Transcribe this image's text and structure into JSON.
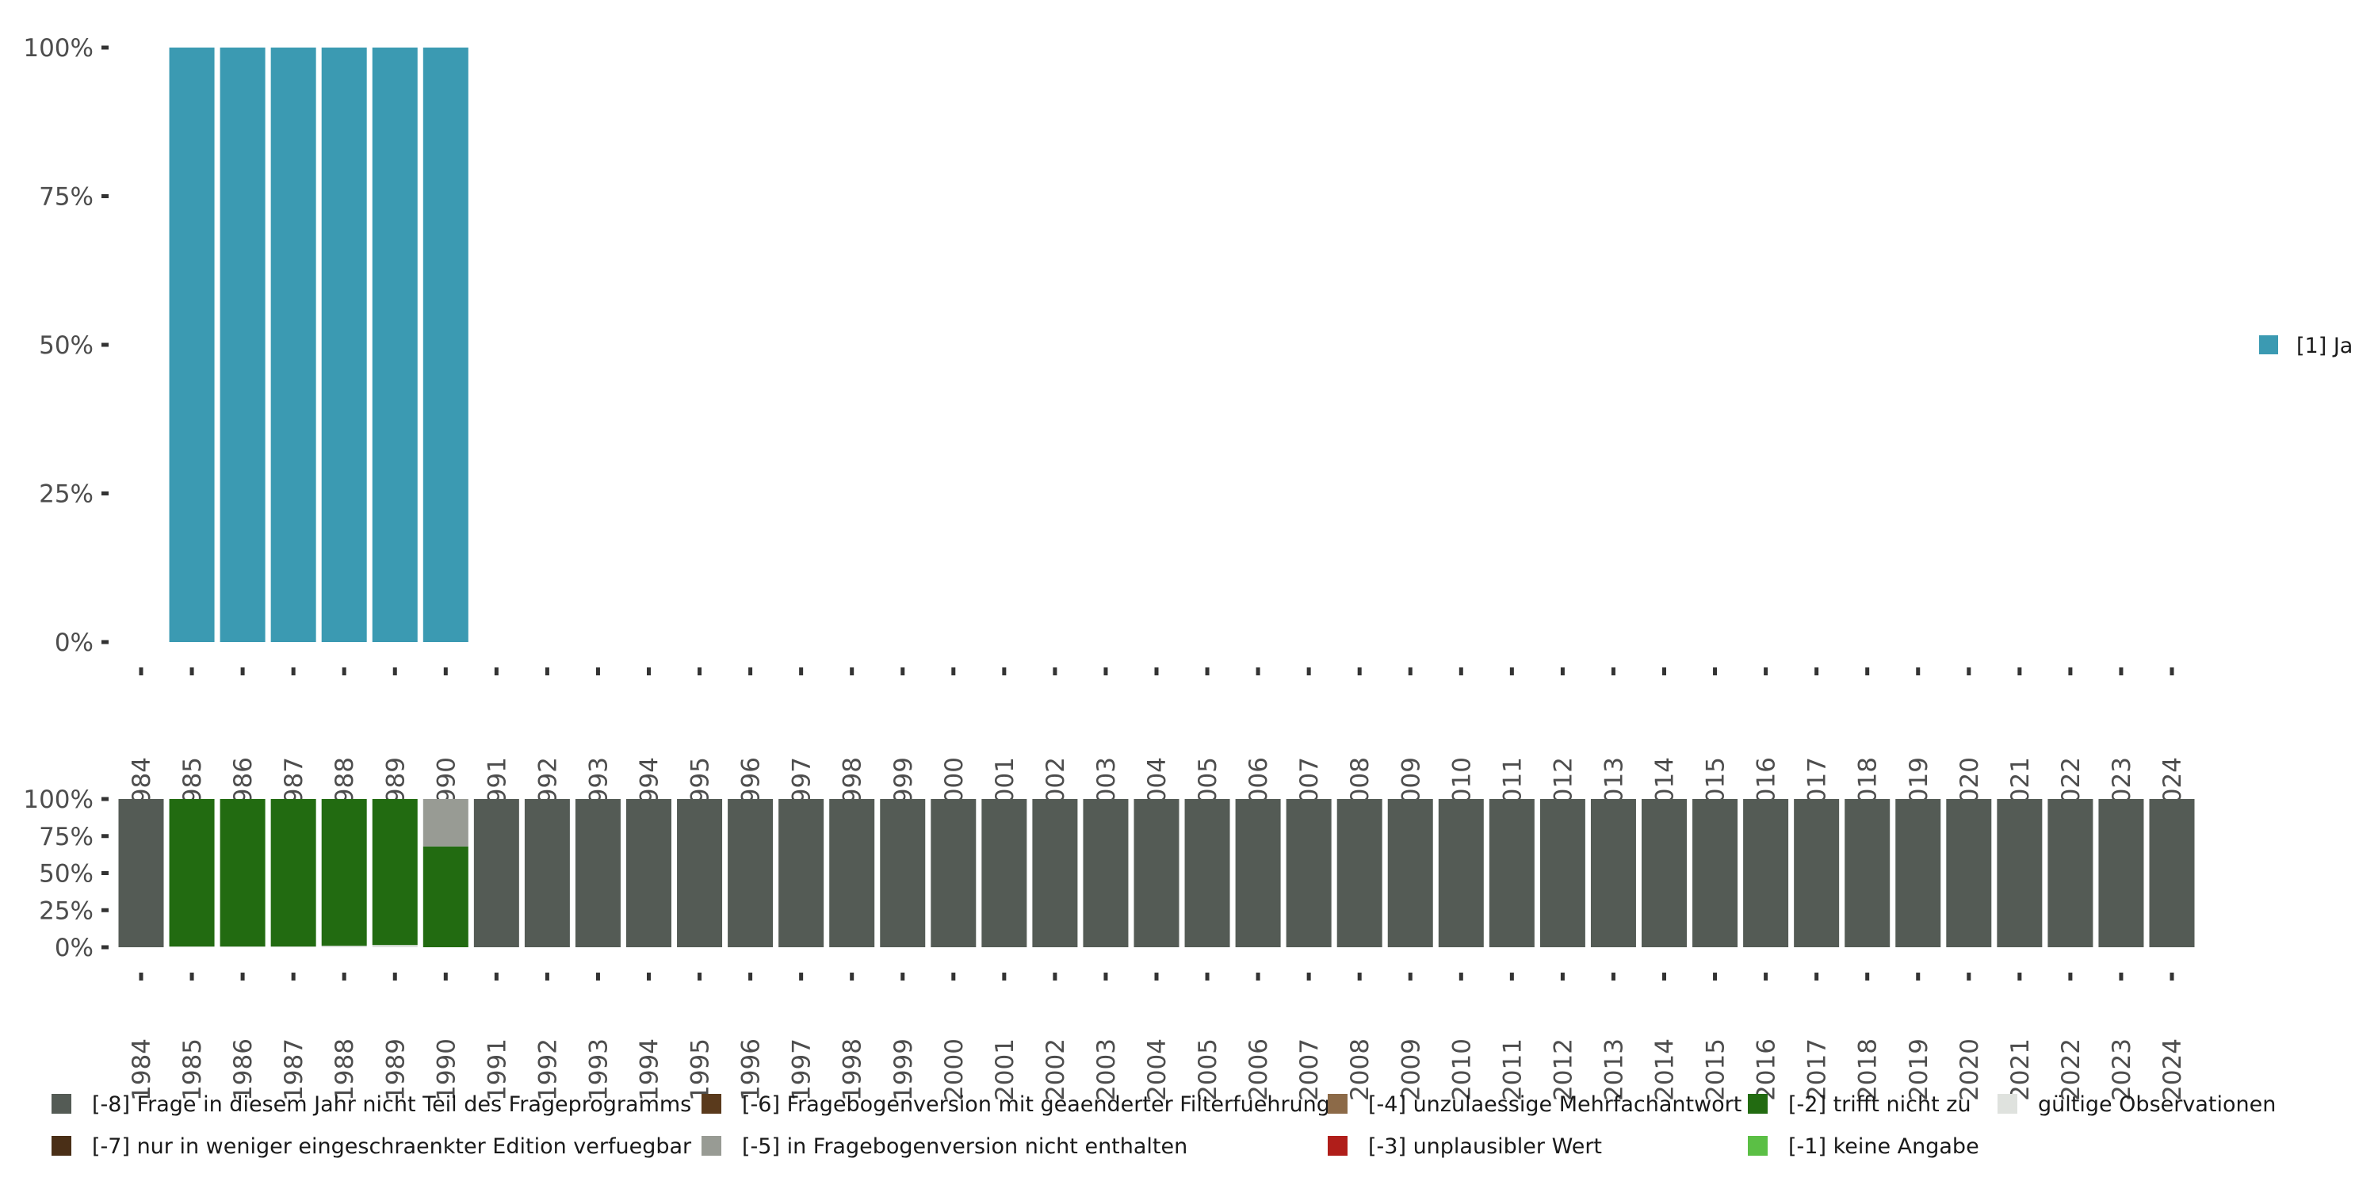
{
  "chart_data": [
    {
      "type": "bar",
      "stacked": true,
      "title": "",
      "xlabel": "",
      "ylabel": "",
      "ylim": [
        0,
        100
      ],
      "yticks": [
        "0%",
        "25%",
        "50%",
        "75%",
        "100%"
      ],
      "categories": [
        "1984",
        "1985",
        "1986",
        "1987",
        "1988",
        "1989",
        "1990",
        "1991",
        "1992",
        "1993",
        "1994",
        "1995",
        "1996",
        "1997",
        "1998",
        "1999",
        "2000",
        "2001",
        "2002",
        "2003",
        "2004",
        "2005",
        "2006",
        "2007",
        "2008",
        "2009",
        "2010",
        "2011",
        "2012",
        "2013",
        "2014",
        "2015",
        "2016",
        "2017",
        "2018",
        "2019",
        "2020",
        "2021",
        "2022",
        "2023",
        "2024"
      ],
      "legend_position": "right",
      "series": [
        {
          "name": "[1] Ja",
          "color": "#3B9AB2",
          "values": [
            0,
            100,
            100,
            100,
            100,
            100,
            100,
            0,
            0,
            0,
            0,
            0,
            0,
            0,
            0,
            0,
            0,
            0,
            0,
            0,
            0,
            0,
            0,
            0,
            0,
            0,
            0,
            0,
            0,
            0,
            0,
            0,
            0,
            0,
            0,
            0,
            0,
            0,
            0,
            0,
            0
          ]
        }
      ]
    },
    {
      "type": "bar",
      "stacked": true,
      "title": "",
      "xlabel": "",
      "ylabel": "",
      "ylim": [
        0,
        100
      ],
      "yticks": [
        "0%",
        "25%",
        "50%",
        "75%",
        "100%"
      ],
      "categories": [
        "1984",
        "1985",
        "1986",
        "1987",
        "1988",
        "1989",
        "1990",
        "1991",
        "1992",
        "1993",
        "1994",
        "1995",
        "1996",
        "1997",
        "1998",
        "1999",
        "2000",
        "2001",
        "2002",
        "2003",
        "2004",
        "2005",
        "2006",
        "2007",
        "2008",
        "2009",
        "2010",
        "2011",
        "2012",
        "2013",
        "2014",
        "2015",
        "2016",
        "2017",
        "2018",
        "2019",
        "2020",
        "2021",
        "2022",
        "2023",
        "2024"
      ],
      "legend_position": "bottom",
      "series": [
        {
          "name": "gültige Observationen",
          "color": "#DFE2DE",
          "values": [
            0,
            0.5,
            0.5,
            0.5,
            1,
            1.5,
            0,
            0,
            0,
            0,
            0,
            0,
            0,
            0,
            0,
            0,
            0,
            0,
            0,
            0,
            0,
            0,
            0,
            0,
            0,
            0,
            0,
            0,
            0,
            0,
            0,
            0,
            0,
            0,
            0,
            0,
            0,
            0,
            0,
            0,
            0
          ]
        },
        {
          "name": "[-1] keine Angabe",
          "color": "#5BBF45",
          "values": [
            0,
            0,
            0,
            0,
            0,
            0,
            0,
            0,
            0,
            0,
            0,
            0,
            0,
            0,
            0,
            0,
            0,
            0,
            0,
            0,
            0,
            0,
            0,
            0,
            0,
            0,
            0,
            0,
            0,
            0,
            0,
            0,
            0,
            0,
            0,
            0,
            0,
            0,
            0,
            0,
            0
          ]
        },
        {
          "name": "[-2] trifft nicht zu",
          "color": "#226B11",
          "values": [
            0,
            99.5,
            99.5,
            99.5,
            99,
            98.5,
            68,
            0,
            0,
            0,
            0,
            0,
            0,
            0,
            0,
            0,
            0,
            0,
            0,
            0,
            0,
            0,
            0,
            0,
            0,
            0,
            0,
            0,
            0,
            0,
            0,
            0,
            0,
            0,
            0,
            0,
            0,
            0,
            0,
            0,
            0
          ]
        },
        {
          "name": "[-3] unplausibler Wert",
          "color": "#B01E1A",
          "values": [
            0,
            0,
            0,
            0,
            0,
            0,
            0,
            0,
            0,
            0,
            0,
            0,
            0,
            0,
            0,
            0,
            0,
            0,
            0,
            0,
            0,
            0,
            0,
            0,
            0,
            0,
            0,
            0,
            0,
            0,
            0,
            0,
            0,
            0,
            0,
            0,
            0,
            0,
            0,
            0,
            0
          ]
        },
        {
          "name": "[-4] unzulaessige Mehrfachantwort",
          "color": "#8C6A48",
          "values": [
            0,
            0,
            0,
            0,
            0,
            0,
            0,
            0,
            0,
            0,
            0,
            0,
            0,
            0,
            0,
            0,
            0,
            0,
            0,
            0,
            0,
            0,
            0,
            0,
            0,
            0,
            0,
            0,
            0,
            0,
            0,
            0,
            0,
            0,
            0,
            0,
            0,
            0,
            0,
            0,
            0
          ]
        },
        {
          "name": "[-5] in Fragebogenversion nicht enthalten",
          "color": "#989B94",
          "values": [
            0,
            0,
            0,
            0,
            0,
            0,
            32,
            0,
            0,
            0,
            0,
            0,
            0,
            0,
            0,
            0,
            0,
            0,
            0,
            0,
            0,
            0,
            0,
            0,
            0,
            0,
            0,
            0,
            0,
            0,
            0,
            0,
            0,
            0,
            0,
            0,
            0,
            0,
            0,
            0,
            0
          ]
        },
        {
          "name": "[-6] Fragebogenversion mit geaenderter Filterfuehrung",
          "color": "#5A3A1C",
          "values": [
            0,
            0,
            0,
            0,
            0,
            0,
            0,
            0,
            0,
            0,
            0,
            0,
            0,
            0,
            0,
            0,
            0,
            0,
            0,
            0,
            0,
            0,
            0,
            0,
            0,
            0,
            0,
            0,
            0,
            0,
            0,
            0,
            0,
            0,
            0,
            0,
            0,
            0,
            0,
            0,
            0
          ]
        },
        {
          "name": "[-7] nur in weniger eingeschraenkter Edition verfuegbar",
          "color": "#4A2F17",
          "values": [
            0,
            0,
            0,
            0,
            0,
            0,
            0,
            0,
            0,
            0,
            0,
            0,
            0,
            0,
            0,
            0,
            0,
            0,
            0,
            0,
            0,
            0,
            0,
            0,
            0,
            0,
            0,
            0,
            0,
            0,
            0,
            0,
            0,
            0,
            0,
            0,
            0,
            0,
            0,
            0,
            0
          ]
        },
        {
          "name": "[-8] Frage in diesem Jahr nicht Teil des Frageprogramms",
          "color": "#545B55",
          "values": [
            100,
            0,
            0,
            0,
            0,
            0,
            0,
            100,
            100,
            100,
            100,
            100,
            100,
            100,
            100,
            100,
            100,
            100,
            100,
            100,
            100,
            100,
            100,
            100,
            100,
            100,
            100,
            100,
            100,
            100,
            100,
            100,
            100,
            100,
            100,
            100,
            100,
            100,
            100,
            100,
            100
          ]
        }
      ],
      "legend_order": [
        "[-8] Frage in diesem Jahr nicht Teil des Frageprogramms",
        "[-6] Fragebogenversion mit geaenderter Filterfuehrung",
        "[-4] unzulaessige Mehrfachantwort",
        "[-2] trifft nicht zu",
        "gültige Observationen",
        "[-7] nur in weniger eingeschraenkter Edition verfuegbar",
        "[-5] in Fragebogenversion nicht enthalten",
        "[-3] unplausibler Wert",
        "[-1] keine Angabe"
      ]
    }
  ]
}
